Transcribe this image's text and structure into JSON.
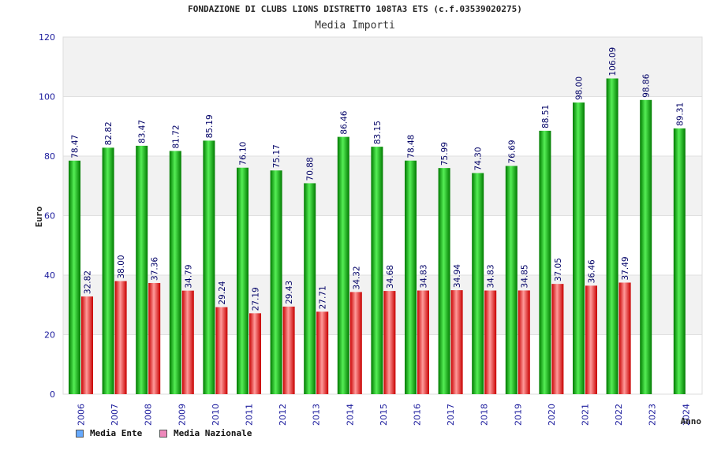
{
  "chart_data": {
    "type": "bar",
    "title": "FONDAZIONE DI CLUBS LIONS DISTRETTO 108TA3 ETS (c.f.03539020275)",
    "subtitle": "Media Importi",
    "xlabel": "Anno",
    "ylabel": "Euro",
    "ylim": [
      0,
      120
    ],
    "yticks": [
      0,
      20,
      40,
      60,
      80,
      100,
      120
    ],
    "grid": true,
    "categories": [
      "2006",
      "2007",
      "2008",
      "2009",
      "2010",
      "2011",
      "2012",
      "2013",
      "2014",
      "2015",
      "2016",
      "2017",
      "2018",
      "2019",
      "2020",
      "2021",
      "2022",
      "2023",
      "2024"
    ],
    "series": [
      {
        "name": "Media Ente",
        "color": "#00aa00",
        "labels": [
          "78.47",
          "82.82",
          "83.47",
          "81.72",
          "85.19",
          "76.10",
          "75.17",
          "70.88",
          "86.46",
          "83.15",
          "78.48",
          "75.99",
          "74.30",
          "76.69",
          "88.51",
          "98.00",
          "106.09",
          "98.86",
          "89.31"
        ],
        "values": [
          78.47,
          82.82,
          83.47,
          81.72,
          85.19,
          76.1,
          75.17,
          70.88,
          86.46,
          83.15,
          78.48,
          75.99,
          74.3,
          76.69,
          88.51,
          98.0,
          106.09,
          98.86,
          89.31
        ]
      },
      {
        "name": "Media Nazionale",
        "color": "#dd2222",
        "labels": [
          "32.82",
          "38.00",
          "37.36",
          "34.79",
          "29.24",
          "27.19",
          "29.43",
          "27.71",
          "34.32",
          "34.68",
          "34.83",
          "34.94",
          "34.83",
          "34.85",
          "37.05",
          "36.46",
          "37.49",
          "",
          ""
        ],
        "values": [
          32.82,
          38.0,
          37.36,
          34.79,
          29.24,
          27.19,
          29.43,
          27.71,
          34.32,
          34.68,
          34.83,
          34.94,
          34.83,
          34.85,
          37.05,
          36.46,
          37.49,
          null,
          null
        ]
      }
    ],
    "legend": [
      {
        "label": "Media Ente",
        "color": "#66aaff"
      },
      {
        "label": "Media Nazionale",
        "color": "#ee88bb"
      }
    ],
    "legend_position": "bottom-left"
  }
}
